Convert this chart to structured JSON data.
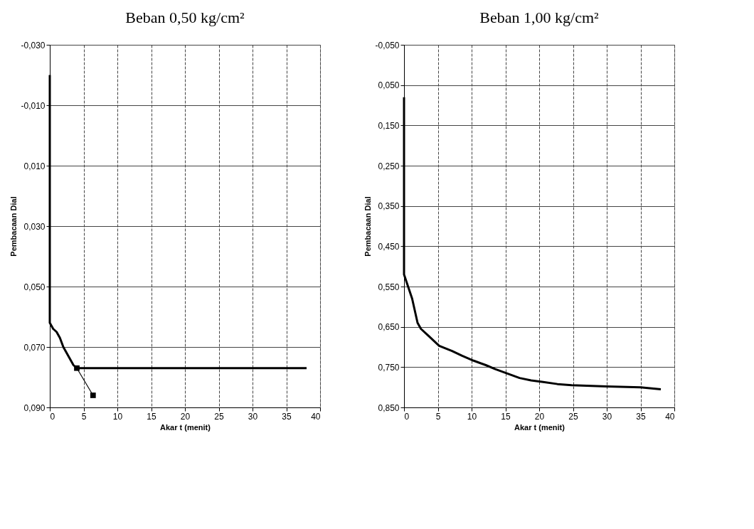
{
  "chart_data": [
    {
      "type": "line",
      "title": "Beban 0,50 kg/cm²",
      "xlabel": "Akar t (menit)",
      "ylabel": "Pembacaan Dial",
      "xlim": [
        0,
        40
      ],
      "xticks": [
        0,
        5,
        10,
        15,
        20,
        25,
        30,
        35,
        40
      ],
      "ylim": [
        0.09,
        -0.03
      ],
      "yticks": [
        {
          "value": -0.03,
          "label": "-0,030"
        },
        {
          "value": -0.01,
          "label": "-0,010"
        },
        {
          "value": 0.01,
          "label": "0,010"
        },
        {
          "value": 0.03,
          "label": "0,030"
        },
        {
          "value": 0.05,
          "label": "0,050"
        },
        {
          "value": 0.07,
          "label": "0,070"
        },
        {
          "value": 0.09,
          "label": "0,090"
        }
      ],
      "grid": true,
      "series": [
        {
          "color": "#000000",
          "marker": "none",
          "x": [
            0,
            0,
            0,
            0,
            0,
            0.5,
            1,
            1.5,
            2,
            2.5,
            3,
            3.5,
            4,
            5,
            10,
            20,
            30,
            38
          ],
          "values": [
            -0.02,
            0.01,
            0.03,
            0.05,
            0.062,
            0.064,
            0.065,
            0.067,
            0.07,
            0.072,
            0.074,
            0.076,
            0.077,
            0.077,
            0.077,
            0.077,
            0.077,
            0.077
          ]
        },
        {
          "color": "#000000",
          "marker": "square",
          "x": [
            4,
            6.4
          ],
          "values": [
            0.077,
            0.086
          ]
        }
      ]
    },
    {
      "type": "line",
      "title": "Beban 1,00 kg/cm²",
      "xlabel": "Akar t (menit)",
      "ylabel": "Pembacaan Dial",
      "xlim": [
        0,
        40
      ],
      "xticks": [
        0,
        5,
        10,
        15,
        20,
        25,
        30,
        35,
        40
      ],
      "ylim": [
        0.85,
        -0.05
      ],
      "yticks": [
        {
          "value": -0.05,
          "label": "-0,050"
        },
        {
          "value": 0.05,
          "label": "0,050"
        },
        {
          "value": 0.15,
          "label": "0,150"
        },
        {
          "value": 0.25,
          "label": "0,250"
        },
        {
          "value": 0.35,
          "label": "0,350"
        },
        {
          "value": 0.45,
          "label": "0,450"
        },
        {
          "value": 0.55,
          "label": "0,550"
        },
        {
          "value": 0.65,
          "label": "0,650"
        },
        {
          "value": 0.75,
          "label": "0,750"
        },
        {
          "value": 0.85,
          "label": "0,850"
        }
      ],
      "grid": true,
      "series": [
        {
          "color": "#000000",
          "marker": "none",
          "x": [
            0,
            0,
            0,
            0,
            0,
            0.5,
            1.2,
            2,
            2.5,
            3.6,
            5.2,
            7.1,
            8.6,
            10.3,
            12.1,
            13.5,
            15.3,
            17.1,
            18.8,
            20.6,
            22.7,
            24.8,
            30,
            35,
            38
          ],
          "values": [
            0.08,
            0.3,
            0.4,
            0.5,
            0.52,
            0.545,
            0.58,
            0.64,
            0.655,
            0.672,
            0.697,
            0.71,
            0.722,
            0.734,
            0.745,
            0.755,
            0.766,
            0.777,
            0.783,
            0.787,
            0.792,
            0.795,
            0.798,
            0.8,
            0.805
          ]
        }
      ]
    }
  ]
}
